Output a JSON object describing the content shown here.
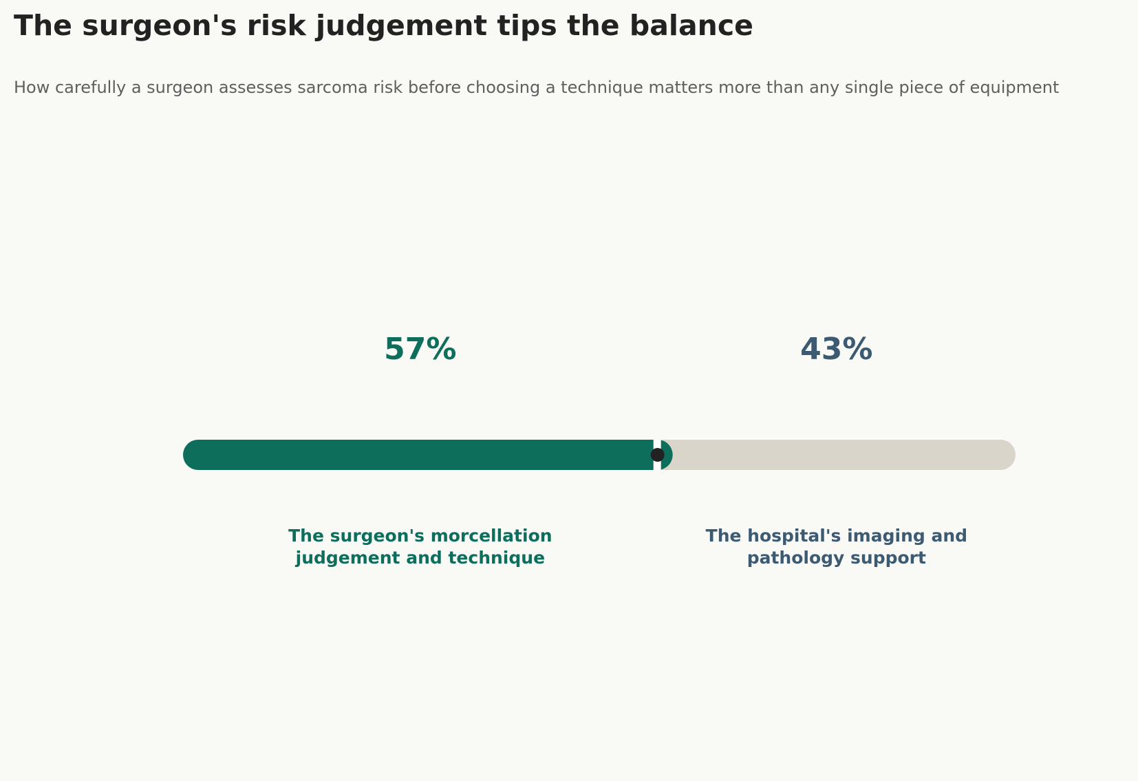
{
  "chart_data": {
    "type": "balance",
    "title": "The surgeon's risk judgement tips the balance",
    "subtitle": "How carefully a surgeon assesses sarcoma risk before choosing a technique matters more than any single piece of equipment",
    "categories": [
      "The surgeon's morcellation\njudgement and technique",
      "The hospital's imaging and\npathology support"
    ],
    "values": [
      57,
      43
    ],
    "value_labels": [
      "57%",
      "43%"
    ],
    "colors": [
      "#0e6e5c",
      "#3d5a73"
    ],
    "bar_colors": [
      "#0e6e5c",
      "#d9d5ca"
    ],
    "xlim": [
      0,
      100
    ]
  }
}
